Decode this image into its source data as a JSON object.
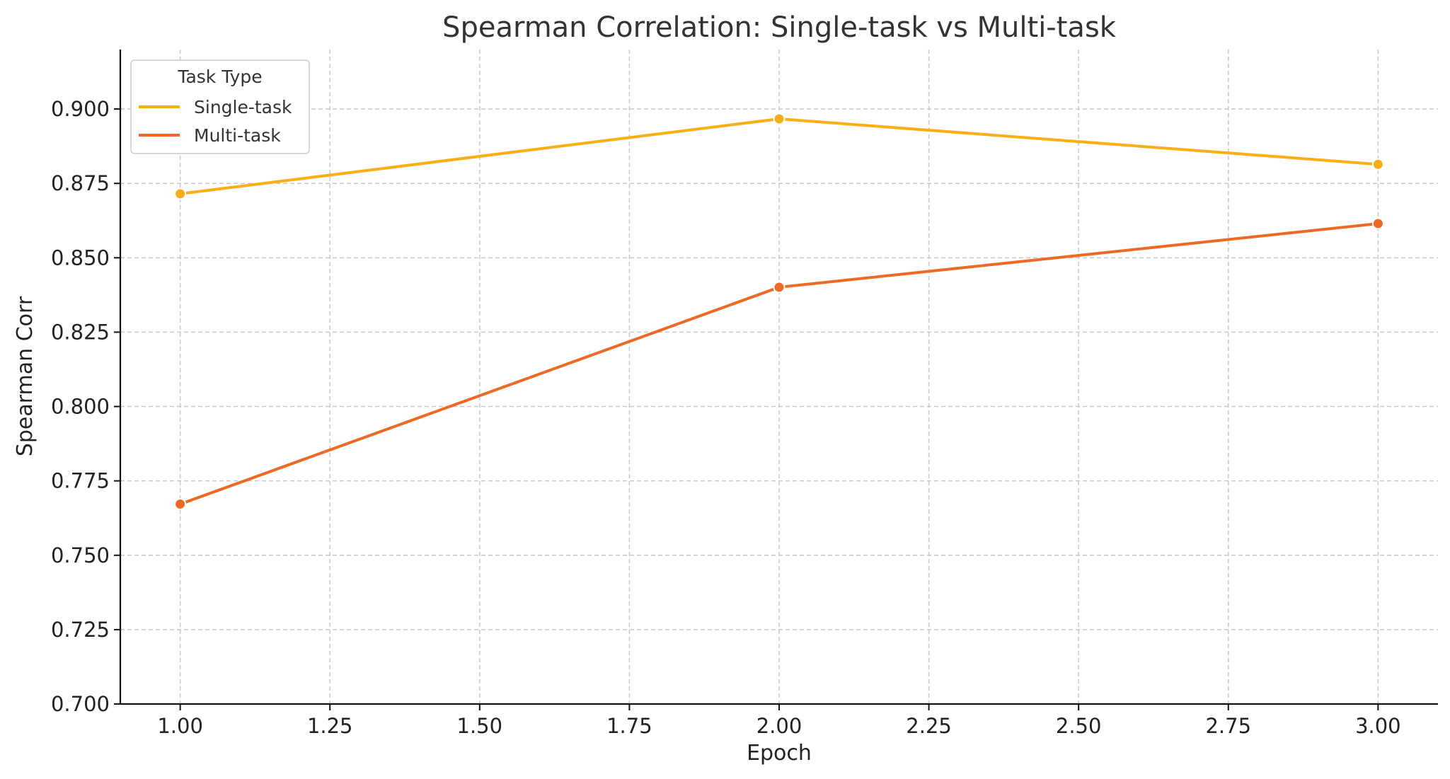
{
  "chart_data": {
    "type": "line",
    "title": "Spearman Correlation: Single-task vs Multi-task",
    "xlabel": "Epoch",
    "ylabel": "Spearman Corr",
    "x": [
      1.0,
      2.0,
      3.0
    ],
    "xlim": [
      0.9,
      3.1
    ],
    "ylim": [
      0.7,
      0.92
    ],
    "xticks": [
      1.0,
      1.25,
      1.5,
      1.75,
      2.0,
      2.25,
      2.5,
      2.75,
      3.0
    ],
    "yticks": [
      0.7,
      0.725,
      0.75,
      0.775,
      0.8,
      0.825,
      0.85,
      0.875,
      0.9
    ],
    "xtick_labels": [
      "1.00",
      "1.25",
      "1.50",
      "1.75",
      "2.00",
      "2.25",
      "2.50",
      "2.75",
      "3.00"
    ],
    "ytick_labels": [
      "0.700",
      "0.725",
      "0.750",
      "0.775",
      "0.800",
      "0.825",
      "0.850",
      "0.875",
      "0.900"
    ],
    "grid": true,
    "legend": {
      "title": "Task Type",
      "placement": "top-left"
    },
    "series": [
      {
        "name": "Single-task",
        "color": "#F9AE16",
        "values": [
          0.8715,
          0.8967,
          0.8814
        ]
      },
      {
        "name": "Multi-task",
        "color": "#EE6A24",
        "values": [
          0.7672,
          0.8401,
          0.8615
        ]
      }
    ]
  }
}
